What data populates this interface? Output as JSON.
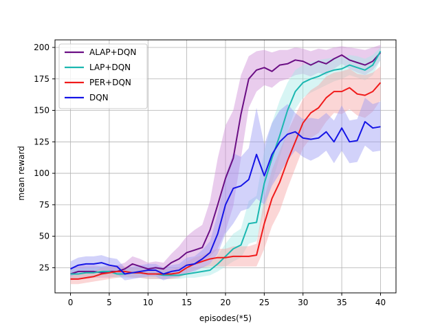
{
  "chart_data": {
    "type": "line",
    "xlabel": "episodes(*5)",
    "ylabel": "mean reward",
    "xlim": [
      -2,
      42
    ],
    "ylim": [
      5,
      206
    ],
    "xticks": [
      0,
      5,
      10,
      15,
      20,
      25,
      30,
      35,
      40
    ],
    "yticks": [
      25,
      50,
      75,
      100,
      125,
      150,
      175,
      200
    ],
    "grid": true,
    "legend_position": "top-left",
    "x": [
      0,
      1,
      2,
      3,
      4,
      5,
      6,
      7,
      8,
      9,
      10,
      11,
      12,
      13,
      14,
      15,
      16,
      17,
      18,
      19,
      20,
      21,
      22,
      23,
      24,
      25,
      26,
      27,
      28,
      29,
      30,
      31,
      32,
      33,
      34,
      35,
      36,
      37,
      38,
      39,
      40
    ],
    "series": [
      {
        "name": "ALAP+DQN",
        "color": "#6a0d83",
        "band_color": "#cf8fd8",
        "values": [
          20,
          22,
          22,
          22,
          21,
          22,
          22,
          24,
          28,
          26,
          24,
          25,
          24,
          29,
          32,
          37,
          39,
          41,
          55,
          75,
          96,
          112,
          147,
          175,
          182,
          184,
          181,
          186,
          187,
          190,
          189,
          186,
          189,
          187,
          191,
          194,
          190,
          188,
          186,
          189,
          196
        ],
        "lower": [
          15,
          16,
          16,
          17,
          17,
          17,
          18,
          19,
          21,
          21,
          20,
          20,
          19,
          22,
          24,
          26,
          27,
          29,
          34,
          40,
          54,
          74,
          112,
          152,
          165,
          170,
          168,
          173,
          175,
          178,
          179,
          177,
          180,
          178,
          183,
          187,
          183,
          180,
          178,
          182,
          190
        ],
        "upper": [
          25,
          27,
          27,
          27,
          26,
          27,
          27,
          29,
          34,
          32,
          29,
          30,
          29,
          36,
          42,
          50,
          55,
          59,
          78,
          112,
          138,
          150,
          178,
          193,
          197,
          198,
          196,
          198,
          198,
          200,
          199,
          197,
          199,
          198,
          200,
          201,
          200,
          199,
          198,
          200,
          202
        ]
      },
      {
        "name": "LAP+DQN",
        "color": "#1ab7b0",
        "band_color": "#a7e9e6",
        "values": [
          20,
          20,
          21,
          21,
          22,
          22,
          20,
          20,
          21,
          21,
          20,
          20,
          19,
          19,
          19,
          20,
          21,
          22,
          23,
          28,
          34,
          40,
          43,
          60,
          61,
          92,
          112,
          130,
          150,
          165,
          172,
          175,
          177,
          180,
          182,
          183,
          186,
          184,
          182,
          186,
          197
        ],
        "lower": [
          16,
          17,
          17,
          17,
          18,
          18,
          17,
          17,
          17,
          17,
          16,
          16,
          16,
          16,
          16,
          17,
          17,
          18,
          19,
          22,
          26,
          30,
          33,
          44,
          46,
          70,
          92,
          113,
          133,
          151,
          160,
          164,
          167,
          170,
          173,
          175,
          178,
          176,
          174,
          178,
          190
        ],
        "upper": [
          24,
          24,
          25,
          25,
          26,
          26,
          24,
          24,
          25,
          25,
          24,
          24,
          23,
          23,
          23,
          24,
          25,
          26,
          28,
          35,
          44,
          52,
          56,
          78,
          82,
          118,
          140,
          158,
          172,
          182,
          186,
          188,
          190,
          191,
          192,
          192,
          194,
          193,
          191,
          194,
          200
        ]
      },
      {
        "name": "PER+DQN",
        "color": "#f01a1a",
        "band_color": "#f7a4a4",
        "values": [
          16,
          16,
          17,
          18,
          20,
          21,
          22,
          22,
          21,
          21,
          20,
          20,
          20,
          20,
          21,
          25,
          28,
          30,
          32,
          33,
          33,
          34,
          34,
          34,
          35,
          60,
          80,
          93,
          110,
          125,
          140,
          148,
          152,
          160,
          165,
          165,
          168,
          163,
          162,
          165,
          172
        ],
        "lower": [
          12,
          12,
          13,
          14,
          15,
          16,
          17,
          18,
          17,
          17,
          16,
          16,
          16,
          16,
          17,
          20,
          23,
          25,
          26,
          26,
          26,
          26,
          26,
          26,
          26,
          40,
          58,
          70,
          88,
          104,
          120,
          128,
          132,
          141,
          148,
          147,
          151,
          146,
          144,
          149,
          158
        ],
        "upper": [
          20,
          20,
          21,
          22,
          25,
          26,
          27,
          26,
          25,
          25,
          24,
          24,
          24,
          24,
          25,
          30,
          33,
          35,
          38,
          40,
          40,
          42,
          42,
          42,
          44,
          80,
          103,
          118,
          133,
          146,
          159,
          166,
          170,
          177,
          180,
          181,
          183,
          179,
          178,
          180,
          185
        ]
      },
      {
        "name": "DQN",
        "color": "#1414e6",
        "band_color": "#9c9cf3",
        "values": [
          24,
          27,
          28,
          28,
          29,
          27,
          26,
          20,
          21,
          22,
          23,
          23,
          20,
          22,
          23,
          27,
          28,
          32,
          37,
          52,
          75,
          88,
          90,
          95,
          115,
          98,
          115,
          125,
          131,
          133,
          128,
          127,
          128,
          133,
          125,
          136,
          125,
          126,
          141,
          136,
          137
        ],
        "lower": [
          18,
          21,
          22,
          22,
          23,
          21,
          20,
          15,
          16,
          17,
          18,
          18,
          15,
          17,
          18,
          21,
          22,
          25,
          28,
          36,
          52,
          60,
          70,
          72,
          80,
          75,
          90,
          100,
          110,
          118,
          113,
          110,
          113,
          118,
          108,
          118,
          108,
          109,
          122,
          117,
          118
        ],
        "upper": [
          30,
          33,
          34,
          34,
          35,
          33,
          32,
          25,
          26,
          27,
          28,
          28,
          25,
          27,
          28,
          33,
          34,
          39,
          46,
          68,
          98,
          116,
          113,
          120,
          152,
          123,
          140,
          150,
          155,
          148,
          143,
          144,
          143,
          148,
          142,
          154,
          142,
          143,
          160,
          155,
          157
        ]
      }
    ]
  }
}
